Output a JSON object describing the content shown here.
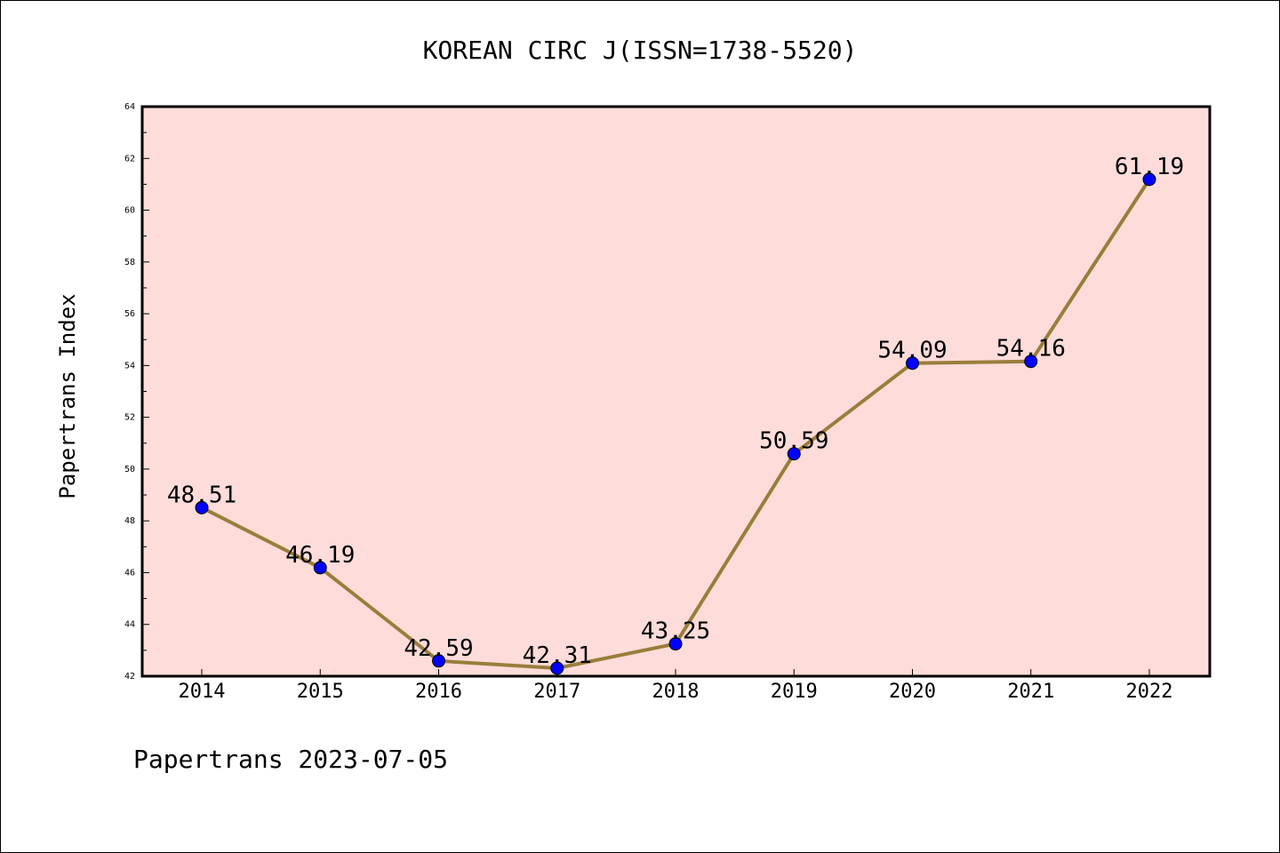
{
  "chart_data": {
    "type": "line",
    "title": "KOREAN CIRC J(ISSN=1738-5520)",
    "ylabel": "Papertrans Index",
    "xlabel": "",
    "footer": "Papertrans 2023-07-05",
    "categories": [
      "2014",
      "2015",
      "2016",
      "2017",
      "2018",
      "2019",
      "2020",
      "2021",
      "2022"
    ],
    "values": [
      48.51,
      46.19,
      42.59,
      42.31,
      43.25,
      50.59,
      54.09,
      54.16,
      61.19
    ],
    "data_labels": [
      "48.51",
      "46.19",
      "42.59",
      "42.31",
      "43.25",
      "50.59",
      "54.09",
      "54.16",
      "61.19"
    ],
    "ylim": [
      42,
      64
    ],
    "yticks": [
      "42",
      "44",
      "46",
      "48",
      "50",
      "52",
      "54",
      "56",
      "58",
      "60",
      "62",
      "64"
    ],
    "grid": false,
    "legend": "none",
    "colors": {
      "plot_background": "#fddcd9",
      "line": "#9a7d3a",
      "marker": "#0000ff",
      "axes": "#000000"
    }
  }
}
